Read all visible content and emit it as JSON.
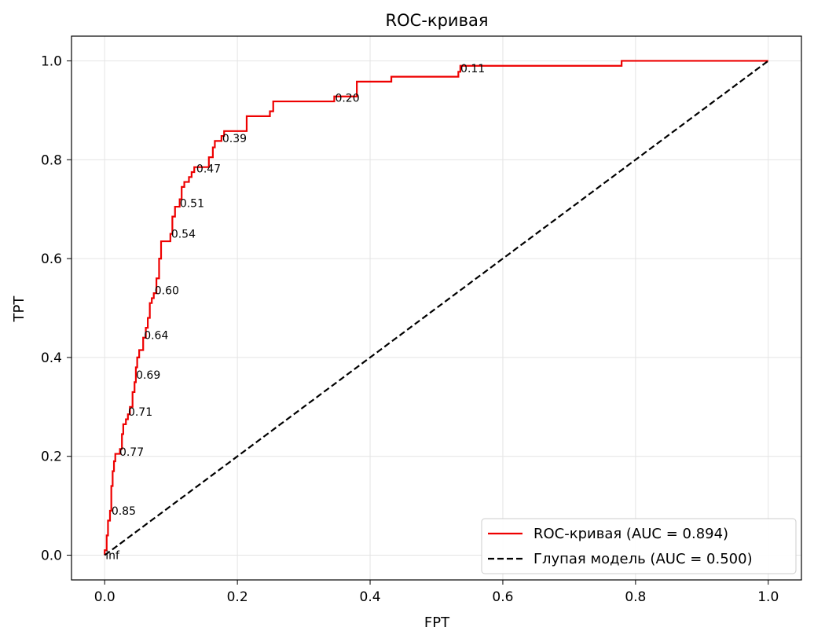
{
  "chart_data": {
    "type": "line",
    "title": "ROC-кривая",
    "xlabel": "FPT",
    "ylabel": "TPT",
    "xlim": [
      -0.05,
      1.05
    ],
    "ylim": [
      -0.05,
      1.05
    ],
    "xticks": [
      "0.0",
      "0.2",
      "0.4",
      "0.6",
      "0.8",
      "1.0"
    ],
    "yticks": [
      "0.0",
      "0.2",
      "0.4",
      "0.6",
      "0.8",
      "1.0"
    ],
    "grid": true,
    "legend_position": "lower-right",
    "colors": {
      "roc": "#ee0000",
      "baseline": "#000000",
      "grid": "#e4e4e4"
    },
    "series": [
      {
        "name": "ROC-кривая (AUC = 0.894)",
        "style": "solid",
        "step": true,
        "points": [
          [
            0.0,
            0.0
          ],
          [
            0.0,
            0.01
          ],
          [
            0.003,
            0.01
          ],
          [
            0.003,
            0.04
          ],
          [
            0.005,
            0.04
          ],
          [
            0.005,
            0.07
          ],
          [
            0.008,
            0.07
          ],
          [
            0.008,
            0.09
          ],
          [
            0.01,
            0.09
          ],
          [
            0.01,
            0.14
          ],
          [
            0.012,
            0.14
          ],
          [
            0.012,
            0.17
          ],
          [
            0.014,
            0.17
          ],
          [
            0.014,
            0.19
          ],
          [
            0.016,
            0.19
          ],
          [
            0.016,
            0.205
          ],
          [
            0.023,
            0.205
          ],
          [
            0.023,
            0.215
          ],
          [
            0.026,
            0.215
          ],
          [
            0.026,
            0.245
          ],
          [
            0.028,
            0.245
          ],
          [
            0.028,
            0.265
          ],
          [
            0.032,
            0.265
          ],
          [
            0.032,
            0.275
          ],
          [
            0.035,
            0.275
          ],
          [
            0.035,
            0.285
          ],
          [
            0.038,
            0.285
          ],
          [
            0.038,
            0.3
          ],
          [
            0.042,
            0.3
          ],
          [
            0.042,
            0.33
          ],
          [
            0.045,
            0.33
          ],
          [
            0.045,
            0.35
          ],
          [
            0.047,
            0.35
          ],
          [
            0.047,
            0.38
          ],
          [
            0.049,
            0.38
          ],
          [
            0.049,
            0.4
          ],
          [
            0.052,
            0.4
          ],
          [
            0.052,
            0.415
          ],
          [
            0.058,
            0.415
          ],
          [
            0.058,
            0.44
          ],
          [
            0.062,
            0.44
          ],
          [
            0.062,
            0.46
          ],
          [
            0.065,
            0.46
          ],
          [
            0.065,
            0.48
          ],
          [
            0.068,
            0.48
          ],
          [
            0.068,
            0.51
          ],
          [
            0.071,
            0.51
          ],
          [
            0.071,
            0.52
          ],
          [
            0.074,
            0.52
          ],
          [
            0.074,
            0.53
          ],
          [
            0.078,
            0.53
          ],
          [
            0.078,
            0.56
          ],
          [
            0.082,
            0.56
          ],
          [
            0.082,
            0.6
          ],
          [
            0.085,
            0.6
          ],
          [
            0.085,
            0.635
          ],
          [
            0.099,
            0.635
          ],
          [
            0.099,
            0.65
          ],
          [
            0.102,
            0.65
          ],
          [
            0.102,
            0.685
          ],
          [
            0.106,
            0.685
          ],
          [
            0.106,
            0.705
          ],
          [
            0.113,
            0.705
          ],
          [
            0.113,
            0.72
          ],
          [
            0.116,
            0.72
          ],
          [
            0.116,
            0.745
          ],
          [
            0.12,
            0.745
          ],
          [
            0.12,
            0.755
          ],
          [
            0.127,
            0.755
          ],
          [
            0.127,
            0.765
          ],
          [
            0.131,
            0.765
          ],
          [
            0.131,
            0.775
          ],
          [
            0.135,
            0.775
          ],
          [
            0.135,
            0.785
          ],
          [
            0.157,
            0.785
          ],
          [
            0.157,
            0.805
          ],
          [
            0.163,
            0.805
          ],
          [
            0.163,
            0.825
          ],
          [
            0.166,
            0.825
          ],
          [
            0.166,
            0.838
          ],
          [
            0.176,
            0.838
          ],
          [
            0.176,
            0.848
          ],
          [
            0.18,
            0.848
          ],
          [
            0.18,
            0.858
          ],
          [
            0.214,
            0.858
          ],
          [
            0.214,
            0.888
          ],
          [
            0.249,
            0.888
          ],
          [
            0.249,
            0.898
          ],
          [
            0.254,
            0.898
          ],
          [
            0.254,
            0.918
          ],
          [
            0.346,
            0.918
          ],
          [
            0.346,
            0.928
          ],
          [
            0.38,
            0.928
          ],
          [
            0.38,
            0.958
          ],
          [
            0.432,
            0.958
          ],
          [
            0.432,
            0.968
          ],
          [
            0.533,
            0.968
          ],
          [
            0.533,
            0.978
          ],
          [
            0.536,
            0.978
          ],
          [
            0.536,
            0.99
          ],
          [
            0.779,
            0.99
          ],
          [
            0.779,
            1.0
          ],
          [
            1.0,
            1.0
          ]
        ]
      },
      {
        "name": "Глупая модель (AUC = 0.500)",
        "style": "dashed",
        "points": [
          [
            0.0,
            0.0
          ],
          [
            1.0,
            1.0
          ]
        ]
      }
    ],
    "annotations": [
      {
        "text": "inf",
        "x": 0.0,
        "y": 0.0
      },
      {
        "text": "0.85",
        "x": 0.009,
        "y": 0.09
      },
      {
        "text": "0.77",
        "x": 0.021,
        "y": 0.209
      },
      {
        "text": "0.71",
        "x": 0.034,
        "y": 0.29
      },
      {
        "text": "0.69",
        "x": 0.046,
        "y": 0.365
      },
      {
        "text": "0.64",
        "x": 0.058,
        "y": 0.445
      },
      {
        "text": "0.60",
        "x": 0.074,
        "y": 0.536
      },
      {
        "text": "0.54",
        "x": 0.099,
        "y": 0.65
      },
      {
        "text": "0.51",
        "x": 0.112,
        "y": 0.712
      },
      {
        "text": "0.47",
        "x": 0.137,
        "y": 0.782
      },
      {
        "text": "0.39",
        "x": 0.176,
        "y": 0.843
      },
      {
        "text": "0.20",
        "x": 0.346,
        "y": 0.925
      },
      {
        "text": "0.11",
        "x": 0.535,
        "y": 0.985
      }
    ]
  }
}
